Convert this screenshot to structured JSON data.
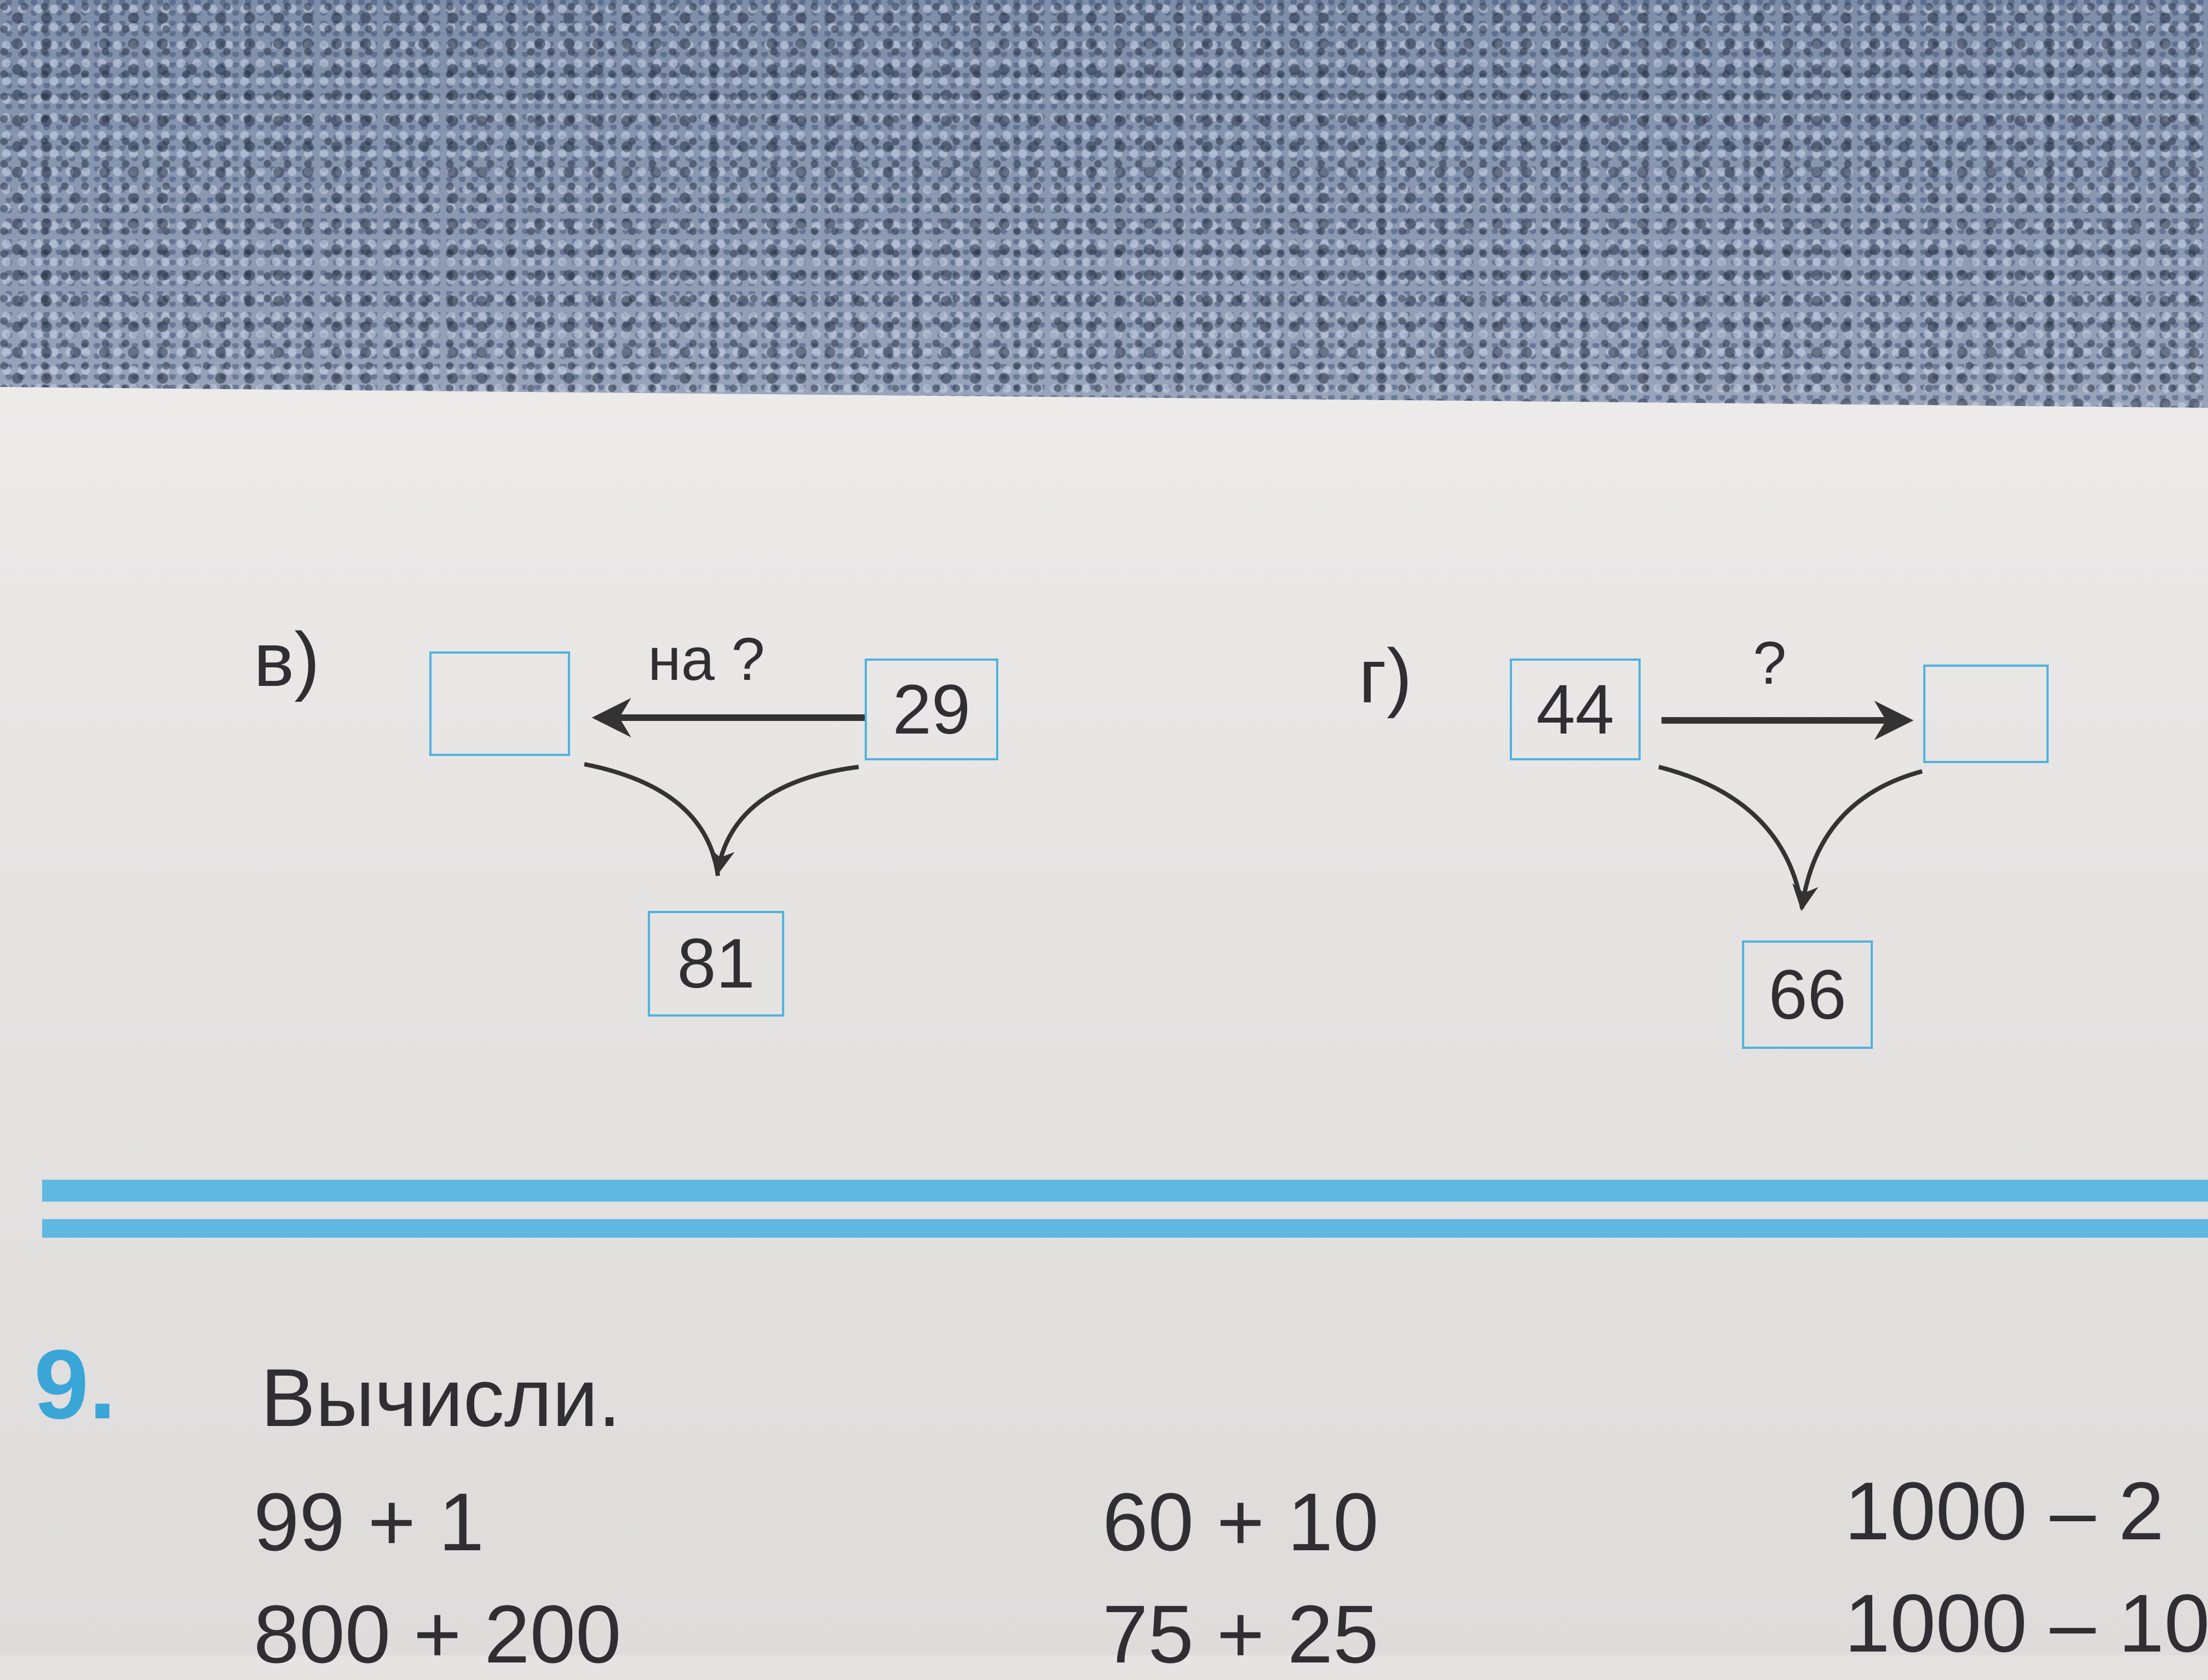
{
  "exercise_8": {
    "part_v": {
      "label": "в)",
      "arrow_label": "на ?",
      "start_value": "29",
      "result_box": "",
      "bottom_value": "81"
    },
    "part_g": {
      "label": "г)",
      "arrow_label": "?",
      "start_value": "44",
      "result_box": "",
      "bottom_value": "66"
    }
  },
  "exercise_9": {
    "number": "9.",
    "title": "Вычисли.",
    "expressions": [
      [
        "99 + 1",
        "60 + 10",
        "1000 – 2"
      ],
      [
        "800 + 200",
        "75 + 25",
        "1000 – 10"
      ]
    ]
  },
  "colors": {
    "accent": "#4fb3dc",
    "ink": "#2f2f33",
    "paper": "#e6e3e3"
  }
}
